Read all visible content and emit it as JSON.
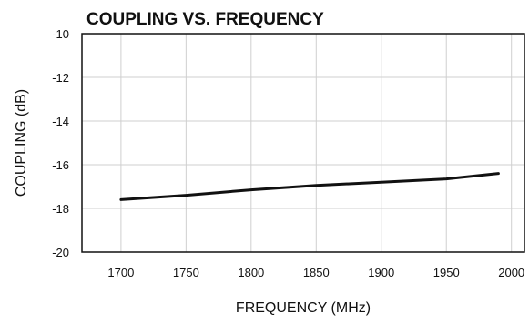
{
  "chart_data": {
    "type": "line",
    "title": "COUPLING VS. FREQUENCY",
    "xlabel": "FREQUENCY (MHz)",
    "ylabel": "COUPLING (dB)",
    "xlim": [
      1670,
      2010
    ],
    "ylim": [
      -20,
      -10
    ],
    "xticks": [
      1700,
      1750,
      1800,
      1850,
      1900,
      1950,
      2000
    ],
    "yticks": [
      -10,
      -12,
      -14,
      -16,
      -18,
      -20
    ],
    "grid": true,
    "series": [
      {
        "x": [
          1700,
          1750,
          1800,
          1850,
          1900,
          1950,
          1990
        ],
        "y": [
          -17.6,
          -17.4,
          -17.15,
          -16.95,
          -16.8,
          -16.65,
          -16.4
        ],
        "color": "#111111"
      }
    ]
  }
}
